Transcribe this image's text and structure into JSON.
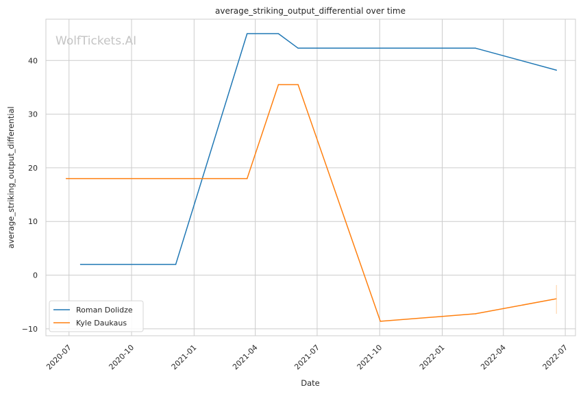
{
  "chart_data": {
    "type": "line",
    "title": "average_striking_output_differential over time",
    "xlabel": "Date",
    "ylabel": "average_striking_output_differential",
    "watermark": "WolfTickets.AI",
    "x_ticks": [
      "2020-07",
      "2020-10",
      "2021-01",
      "2021-04",
      "2021-07",
      "2021-10",
      "2022-01",
      "2022-04",
      "2022-07"
    ],
    "y_ticks": [
      -10,
      0,
      10,
      20,
      30,
      40
    ],
    "xlim": [
      "2020-05-28",
      "2022-07-16"
    ],
    "ylim": [
      -11.3,
      47.7
    ],
    "grid": true,
    "legend_position": "lower-left",
    "series": [
      {
        "name": "Roman Dolidze",
        "color": "#1f77b4",
        "points": [
          {
            "x": "2020-07-18",
            "y": 2.0
          },
          {
            "x": "2020-12-05",
            "y": 2.0
          },
          {
            "x": "2021-03-20",
            "y": 45.0
          },
          {
            "x": "2021-05-05",
            "y": 45.0
          },
          {
            "x": "2021-06-03",
            "y": 42.3
          },
          {
            "x": "2022-02-19",
            "y": 42.3
          },
          {
            "x": "2022-06-18",
            "y": 38.2
          }
        ]
      },
      {
        "name": "Kyle Daukaus",
        "color": "#ff7f0e",
        "points": [
          {
            "x": "2020-06-27",
            "y": 18.0
          },
          {
            "x": "2021-03-20",
            "y": 18.0
          },
          {
            "x": "2021-05-05",
            "y": 35.5
          },
          {
            "x": "2021-06-03",
            "y": 35.5
          },
          {
            "x": "2021-10-02",
            "y": -8.6
          },
          {
            "x": "2022-02-19",
            "y": -7.2
          },
          {
            "x": "2022-06-18",
            "y": -4.4
          }
        ]
      }
    ]
  }
}
